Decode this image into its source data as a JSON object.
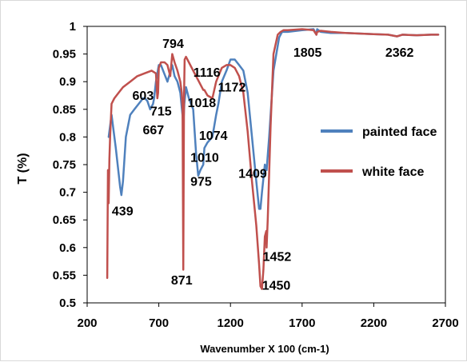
{
  "chart_data": {
    "type": "line",
    "xlabel": "Wavenumber X 100 (cm-1)",
    "ylabel": "T (%)",
    "xlim": [
      200,
      2700
    ],
    "ylim": [
      0.5,
      1
    ],
    "xticks": [
      200,
      700,
      1200,
      1700,
      2200,
      2700
    ],
    "yticks": [
      0.5,
      0.55,
      0.6,
      0.65,
      0.7,
      0.75,
      0.8,
      0.85,
      0.9,
      0.95,
      1
    ],
    "ytick_labels": [
      "0.5",
      "0.55",
      "0.6",
      "0.65",
      "0.7",
      "0.75",
      "0.8",
      "0.85",
      "0.9",
      "0.95",
      "1"
    ],
    "grid": false,
    "legend": "right",
    "series": [
      {
        "name": "painted face",
        "color": "#4f81bd",
        "x": [
          350,
          370,
          400,
          430,
          439,
          450,
          470,
          500,
          530,
          560,
          590,
          603,
          620,
          640,
          660,
          667,
          680,
          700,
          715,
          730,
          760,
          794,
          810,
          830,
          850,
          865,
          871,
          878,
          890,
          910,
          940,
          960,
          975,
          990,
          1010,
          1018,
          1040,
          1074,
          1100,
          1116,
          1140,
          1172,
          1200,
          1230,
          1260,
          1290,
          1320,
          1350,
          1380,
          1400,
          1409,
          1420,
          1440,
          1452,
          1470,
          1500,
          1540,
          1560,
          1600,
          1700,
          1780,
          1800,
          1805,
          1830,
          1900,
          2000,
          2100,
          2200,
          2300,
          2362,
          2400,
          2500,
          2600,
          2650
        ],
        "y": [
          0.8,
          0.84,
          0.78,
          0.71,
          0.695,
          0.72,
          0.8,
          0.84,
          0.85,
          0.86,
          0.87,
          0.87,
          0.865,
          0.85,
          0.86,
          0.87,
          0.9,
          0.93,
          0.93,
          0.92,
          0.9,
          0.93,
          0.91,
          0.9,
          0.88,
          0.84,
          0.82,
          0.86,
          0.89,
          0.87,
          0.85,
          0.77,
          0.73,
          0.74,
          0.75,
          0.78,
          0.79,
          0.8,
          0.84,
          0.86,
          0.9,
          0.92,
          0.94,
          0.94,
          0.93,
          0.92,
          0.88,
          0.8,
          0.72,
          0.67,
          0.67,
          0.7,
          0.75,
          0.74,
          0.8,
          0.92,
          0.98,
          0.99,
          0.99,
          0.993,
          0.995,
          0.985,
          0.995,
          0.99,
          0.988,
          0.988,
          0.987,
          0.986,
          0.985,
          0.982,
          0.985,
          0.984,
          0.985,
          0.985
        ]
      },
      {
        "name": "white face",
        "color": "#c0504d",
        "x": [
          340,
          345,
          350,
          355,
          360,
          370,
          390,
          420,
          450,
          500,
          550,
          600,
          650,
          680,
          690,
          695,
          700,
          715,
          740,
          760,
          780,
          794,
          810,
          830,
          850,
          860,
          866,
          871,
          876,
          880,
          890,
          910,
          940,
          980,
          1010,
          1018,
          1040,
          1074,
          1100,
          1116,
          1140,
          1172,
          1200,
          1230,
          1260,
          1290,
          1320,
          1350,
          1380,
          1400,
          1409,
          1420,
          1430,
          1440,
          1450,
          1452,
          1460,
          1480,
          1500,
          1530,
          1550,
          1570,
          1600,
          1700,
          1780,
          1800,
          1805,
          1830,
          1900,
          2000,
          2100,
          2200,
          2300,
          2362,
          2400,
          2500,
          2600,
          2650
        ],
        "y": [
          0.545,
          0.74,
          0.68,
          0.76,
          0.8,
          0.86,
          0.87,
          0.88,
          0.89,
          0.9,
          0.91,
          0.915,
          0.92,
          0.915,
          0.87,
          0.88,
          0.925,
          0.935,
          0.935,
          0.93,
          0.91,
          0.95,
          0.935,
          0.92,
          0.9,
          0.88,
          0.85,
          0.56,
          0.87,
          0.94,
          0.945,
          0.935,
          0.92,
          0.9,
          0.885,
          0.885,
          0.875,
          0.87,
          0.9,
          0.91,
          0.925,
          0.93,
          0.93,
          0.925,
          0.91,
          0.88,
          0.81,
          0.72,
          0.64,
          0.57,
          0.53,
          0.525,
          0.56,
          0.62,
          0.63,
          0.6,
          0.65,
          0.82,
          0.95,
          0.985,
          0.99,
          0.993,
          0.993,
          0.995,
          0.993,
          0.985,
          0.99,
          0.992,
          0.99,
          0.988,
          0.987,
          0.986,
          0.985,
          0.982,
          0.985,
          0.984,
          0.985,
          0.985
        ]
      }
    ],
    "annotations": [
      {
        "text": "794",
        "x": 800,
        "y": 0.961
      },
      {
        "text": "603",
        "x": 590,
        "y": 0.867
      },
      {
        "text": "715",
        "x": 715,
        "y": 0.839
      },
      {
        "text": "667",
        "x": 662,
        "y": 0.805
      },
      {
        "text": "1116",
        "x": 1035,
        "y": 0.909
      },
      {
        "text": "1172",
        "x": 1210,
        "y": 0.882
      },
      {
        "text": "1018",
        "x": 1000,
        "y": 0.854
      },
      {
        "text": "1074",
        "x": 1080,
        "y": 0.795
      },
      {
        "text": "1010",
        "x": 1020,
        "y": 0.755
      },
      {
        "text": "975",
        "x": 995,
        "y": 0.712
      },
      {
        "text": "439",
        "x": 447,
        "y": 0.658
      },
      {
        "text": "871",
        "x": 860,
        "y": 0.533
      },
      {
        "text": "1409",
        "x": 1355,
        "y": 0.726
      },
      {
        "text": "1452",
        "x": 1525,
        "y": 0.576
      },
      {
        "text": "1450",
        "x": 1520,
        "y": 0.524
      },
      {
        "text": "1805",
        "x": 1738,
        "y": 0.945
      },
      {
        "text": "2362",
        "x": 2380,
        "y": 0.945
      }
    ]
  }
}
